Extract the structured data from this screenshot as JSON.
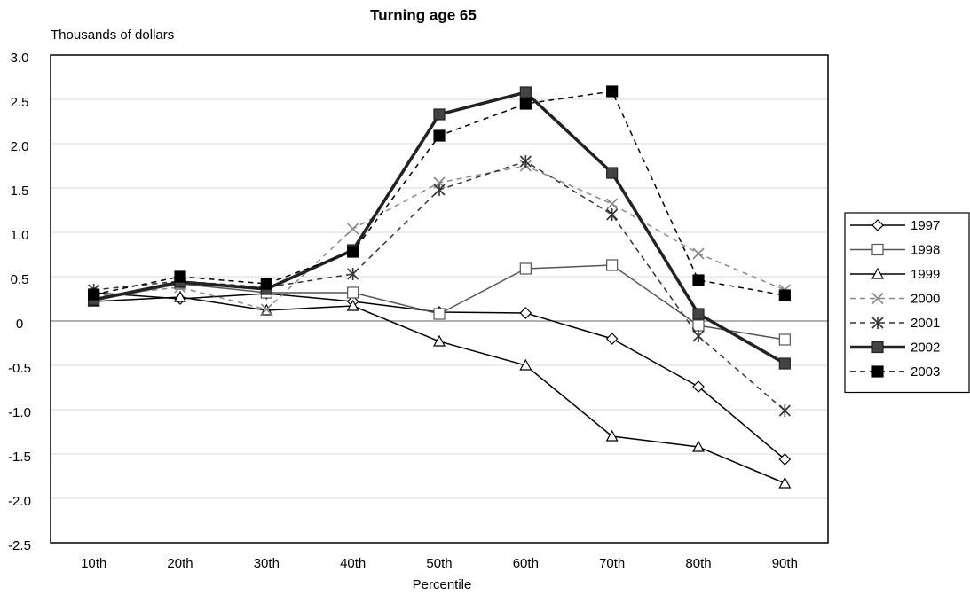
{
  "chart_data": {
    "type": "line",
    "title": "Turning age 65",
    "y_label": "Thousands of dollars",
    "x_label": "Percentile",
    "categories": [
      "10th",
      "20th",
      "30th",
      "40th",
      "50th",
      "60th",
      "70th",
      "80th",
      "90th"
    ],
    "ylim": [
      -2.5,
      3.0
    ],
    "yticks": [
      {
        "value": 3.0,
        "label": "3.0"
      },
      2.5,
      {
        "value": 2.0,
        "label": "2.0"
      },
      1.5,
      {
        "value": 1.0,
        "label": "1.0"
      },
      0.5,
      0,
      -0.5,
      {
        "value": -1.0,
        "label": "-1.0"
      },
      -1.5,
      {
        "value": -2.0,
        "label": "-2.0"
      },
      -2.5
    ],
    "grid": true,
    "legend": "right",
    "series": [
      {
        "name": "1997",
        "color": "#000000",
        "marker": "diamond",
        "marker_fill": "#ffffff",
        "dash": false,
        "line_width": 1.5,
        "values": [
          0.32,
          0.25,
          0.31,
          0.22,
          0.1,
          0.09,
          -0.2,
          -0.74,
          -1.56
        ]
      },
      {
        "name": "1998",
        "color": "#555555",
        "marker": "square",
        "marker_fill": "#ffffff",
        "dash": false,
        "line_width": 1.5,
        "values": [
          0.23,
          0.42,
          0.32,
          0.32,
          0.08,
          0.59,
          0.63,
          -0.05,
          -0.21
        ]
      },
      {
        "name": "1999",
        "color": "#000000",
        "marker": "triangle",
        "marker_fill": "#ffffff",
        "dash": false,
        "line_width": 1.5,
        "values": [
          0.22,
          0.27,
          0.12,
          0.17,
          -0.23,
          -0.5,
          -1.3,
          -1.42,
          -1.83
        ]
      },
      {
        "name": "2000",
        "color": "#888888",
        "marker": "x",
        "marker_fill": "none",
        "dash": true,
        "line_width": 1.5,
        "values": [
          0.28,
          0.38,
          0.13,
          1.04,
          1.56,
          1.75,
          1.32,
          0.76,
          0.35
        ]
      },
      {
        "name": "2001",
        "color": "#333333",
        "marker": "star",
        "marker_fill": "none",
        "dash": true,
        "line_width": 1.5,
        "values": [
          0.35,
          0.45,
          0.38,
          0.53,
          1.48,
          1.8,
          1.2,
          -0.17,
          -1.01
        ]
      },
      {
        "name": "2002",
        "color": "#222222",
        "marker": "square",
        "marker_fill": "#444444",
        "dash": false,
        "line_width": 3.5,
        "values": [
          0.24,
          0.44,
          0.36,
          0.8,
          2.33,
          2.58,
          1.67,
          0.08,
          -0.48
        ]
      },
      {
        "name": "2003",
        "color": "#000000",
        "marker": "square",
        "marker_fill": "#000000",
        "dash": true,
        "line_width": 1.5,
        "values": [
          0.3,
          0.5,
          0.42,
          0.78,
          2.09,
          2.45,
          2.59,
          0.46,
          0.29
        ]
      }
    ]
  }
}
